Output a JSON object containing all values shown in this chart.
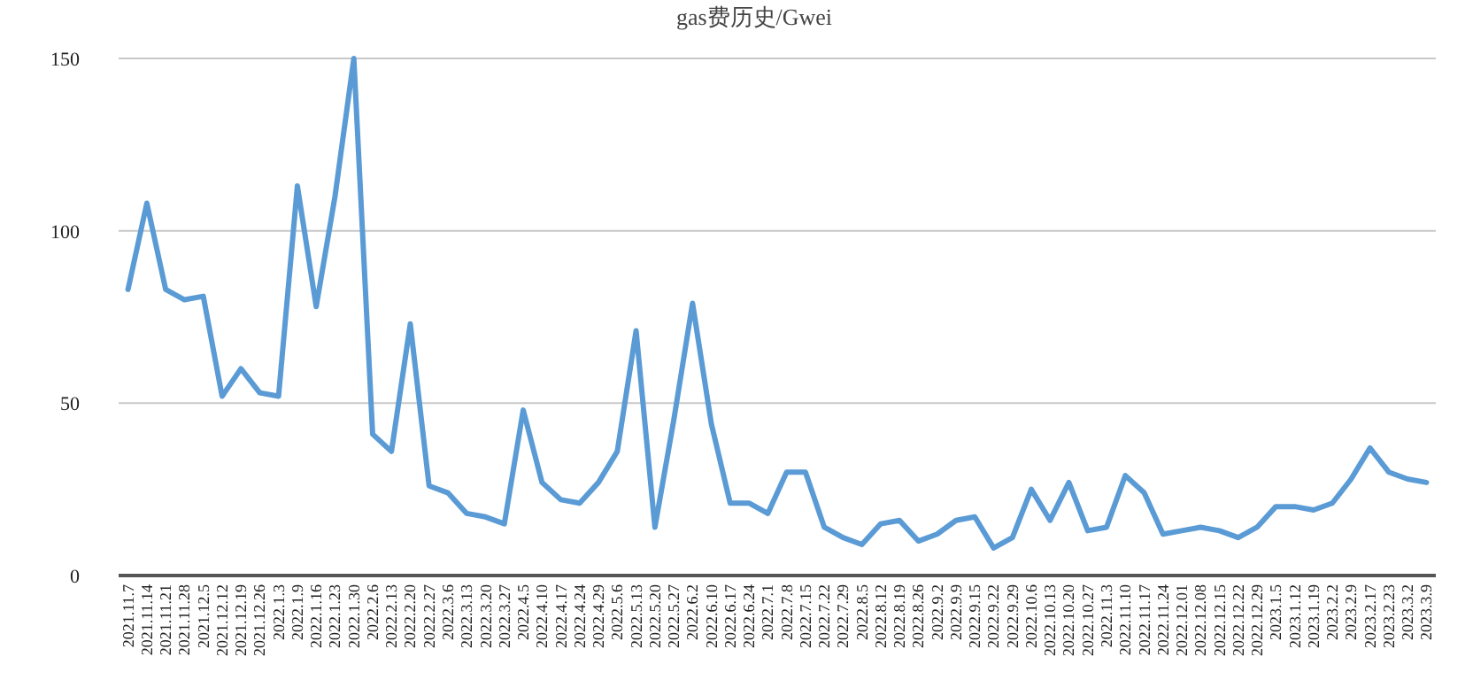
{
  "chart_data": {
    "type": "line",
    "title": "gas费历史/Gwei",
    "categories": [
      "2021.11.7",
      "2021.11.14",
      "2021.11.21",
      "2021.11.28",
      "2021.12.5",
      "2021.12.12",
      "2021.12.19",
      "2021.12.26",
      "2022.1.3",
      "2022.1.9",
      "2022.1.16",
      "2022.1.23",
      "2022.1.30",
      "2022.2.6",
      "2022.2.13",
      "2022.2.20",
      "2022.2.27",
      "2022.3.6",
      "2022.3.13",
      "2022.3.20",
      "2022.3.27",
      "2022.4.5",
      "2022.4.10",
      "2022.4.17",
      "2022.4.24",
      "2022.4.29",
      "2022.5.6",
      "2022.5.13",
      "2022.5.20",
      "2022.5.27",
      "2022.6.2",
      "2022.6.10",
      "2022.6.17",
      "2022.6.24",
      "2022.7.1",
      "2022.7.8",
      "2022.7.15",
      "2022.7.22",
      "2022.7.29",
      "2022.8.5",
      "2022.8.12",
      "2022.8.19",
      "2022.8.26",
      "2022.9.2",
      "2022.9.9",
      "2022.9.15",
      "2022.9.22",
      "2022.9.29",
      "2022.10.6",
      "2022.10.13",
      "2022.10.20",
      "2022.10.27",
      "2022.11.3",
      "2022.11.10",
      "2022.11.17",
      "2022.11.24",
      "2022.12.01",
      "2022.12.08",
      "2022.12.15",
      "2022.12.22",
      "2022.12.29",
      "2023.1.5",
      "2023.1.12",
      "2023.1.19",
      "2023.2.2",
      "2023.2.9",
      "2023.2.17",
      "2023.2.23",
      "2023.3.2",
      "2023.3.9"
    ],
    "series": [
      {
        "color": "#5b9bd5",
        "values": [
          83,
          108,
          83,
          80,
          81,
          52,
          60,
          53,
          52,
          113,
          78,
          110,
          150,
          41,
          36,
          73,
          26,
          24,
          18,
          17,
          15,
          48,
          27,
          22,
          21,
          27,
          36,
          71,
          14,
          45,
          79,
          44,
          21,
          21,
          18,
          30,
          30,
          14,
          11,
          9,
          15,
          16,
          10,
          12,
          16,
          17,
          8,
          11,
          25,
          16,
          27,
          13,
          14,
          29,
          24,
          12,
          13,
          14,
          13,
          11,
          14,
          20,
          20,
          19,
          21,
          28,
          37,
          30,
          28,
          27
        ]
      }
    ],
    "ylim": [
      0,
      150
    ],
    "yticks": [
      0,
      50,
      100,
      150
    ],
    "grid": "y",
    "marker": "none",
    "line_style": "solid"
  }
}
